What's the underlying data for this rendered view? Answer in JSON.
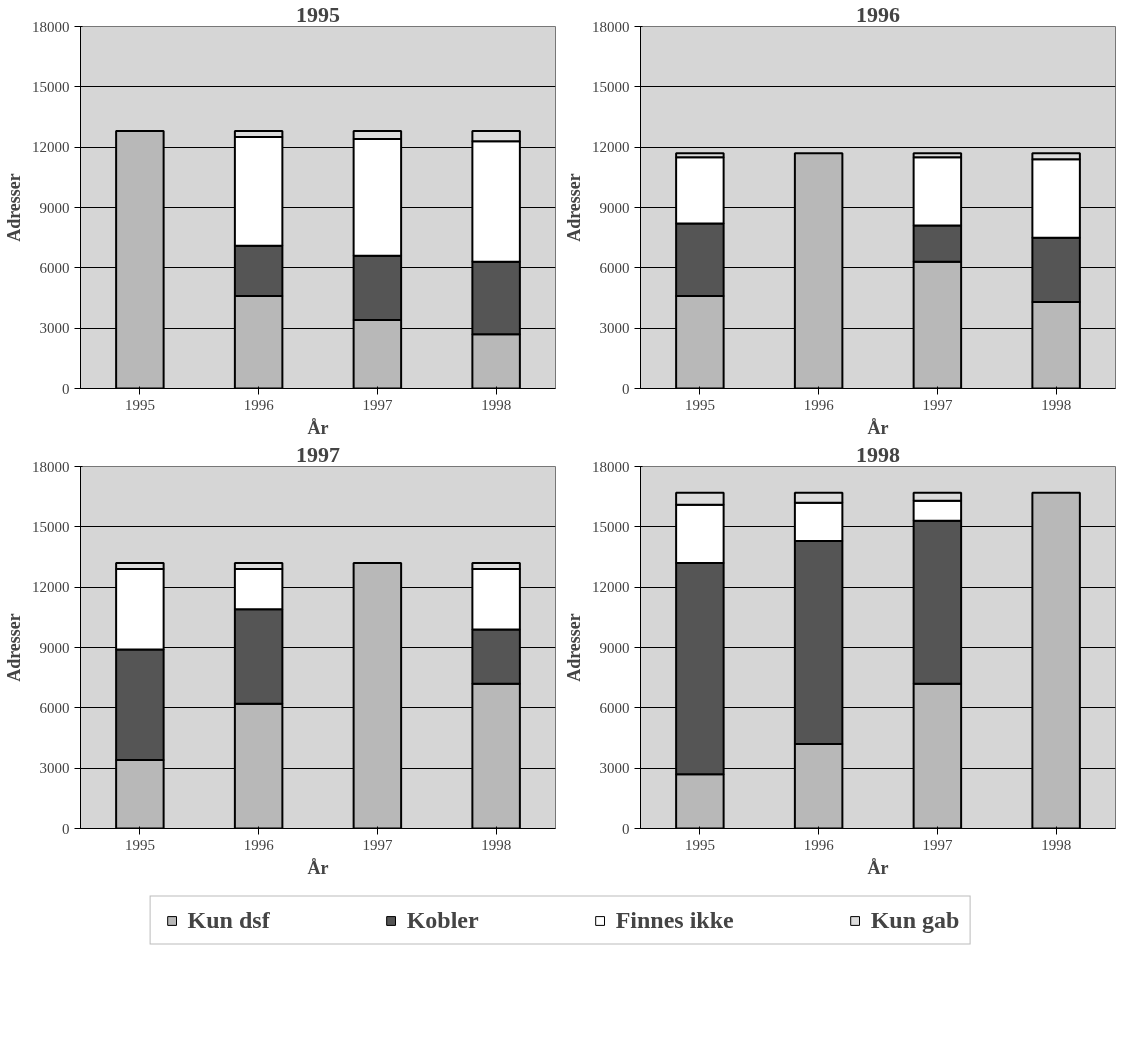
{
  "chart_data": [
    {
      "type": "bar",
      "title": "1995",
      "xlabel": "År",
      "ylabel": "Adresser",
      "categories": [
        "1995",
        "1996",
        "1997",
        "1998"
      ],
      "stacked": true,
      "ylim": [
        0,
        18000
      ],
      "yticks": [
        0,
        3000,
        6000,
        9000,
        12000,
        15000,
        18000
      ],
      "grid": "y",
      "series": [
        {
          "color": "#b8b8b8",
          "values": [
            12800,
            4600,
            3400,
            2700
          ]
        },
        {
          "color": "#555555",
          "values": [
            0,
            2500,
            3200,
            3600
          ]
        },
        {
          "color": "#ffffff",
          "values": [
            0,
            5400,
            5800,
            6000
          ]
        },
        {
          "color": "#dcdcdc",
          "values": [
            0,
            300,
            400,
            500
          ]
        }
      ]
    },
    {
      "type": "bar",
      "title": "1996",
      "xlabel": "År",
      "ylabel": "Adresser",
      "categories": [
        "1995",
        "1996",
        "1997",
        "1998"
      ],
      "stacked": true,
      "ylim": [
        0,
        18000
      ],
      "yticks": [
        0,
        3000,
        6000,
        9000,
        12000,
        15000,
        18000
      ],
      "grid": "y",
      "series": [
        {
          "color": "#b8b8b8",
          "values": [
            4600,
            11700,
            6300,
            4300
          ]
        },
        {
          "color": "#555555",
          "values": [
            3600,
            0,
            1800,
            3200
          ]
        },
        {
          "color": "#ffffff",
          "values": [
            3300,
            0,
            3400,
            3900
          ]
        },
        {
          "color": "#dcdcdc",
          "values": [
            200,
            0,
            200,
            300
          ]
        }
      ]
    },
    {
      "type": "bar",
      "title": "1997",
      "xlabel": "År",
      "ylabel": "Adresser",
      "categories": [
        "1995",
        "1996",
        "1997",
        "1998"
      ],
      "stacked": true,
      "ylim": [
        0,
        18000
      ],
      "yticks": [
        0,
        3000,
        6000,
        9000,
        12000,
        15000,
        18000
      ],
      "grid": "y",
      "series": [
        {
          "color": "#b8b8b8",
          "values": [
            3400,
            6200,
            13200,
            7200
          ]
        },
        {
          "color": "#555555",
          "values": [
            5500,
            4700,
            0,
            2700
          ]
        },
        {
          "color": "#ffffff",
          "values": [
            4000,
            2000,
            0,
            3000
          ]
        },
        {
          "color": "#dcdcdc",
          "values": [
            300,
            300,
            0,
            300
          ]
        }
      ]
    },
    {
      "type": "bar",
      "title": "1998",
      "xlabel": "År",
      "ylabel": "Adresser",
      "categories": [
        "1995",
        "1996",
        "1997",
        "1998"
      ],
      "stacked": true,
      "ylim": [
        0,
        18000
      ],
      "yticks": [
        0,
        3000,
        6000,
        9000,
        12000,
        15000,
        18000
      ],
      "grid": "y",
      "legend": "bottom",
      "series": [
        {
          "name": "Kun dsf",
          "color": "#b8b8b8",
          "values": [
            2700,
            4200,
            7200,
            16700
          ]
        },
        {
          "name": "Kobler",
          "color": "#555555",
          "values": [
            10500,
            10100,
            8100,
            0
          ]
        },
        {
          "name": "Finnes ikke",
          "color": "#ffffff",
          "values": [
            2900,
            1900,
            1000,
            0
          ]
        },
        {
          "name": "Kun gab",
          "color": "#dcdcdc",
          "values": [
            600,
            500,
            400,
            0
          ]
        }
      ]
    }
  ]
}
